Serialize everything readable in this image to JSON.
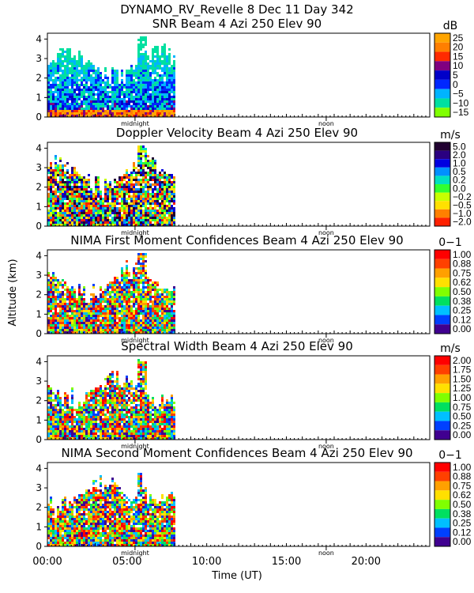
{
  "title": "DYNAMO_RV_Revelle    8 Dec 11 Day 342",
  "ylabel": "Altitude (km)",
  "xlabel": "Time (UT)",
  "x_ticks": [
    "00:00",
    "05:00",
    "10:00",
    "15:00",
    "20:00"
  ],
  "chart_data": [
    {
      "type": "heatmap",
      "title": "SNR Beam 4 Azi 250 Elev 90",
      "unit": "dB",
      "xlim": [
        0,
        24
      ],
      "ylim": [
        0,
        4.3
      ],
      "y_ticks": [
        "0",
        "1",
        "2",
        "3",
        "4"
      ],
      "markers": [
        {
          "label": "midnight",
          "x": 5.5
        },
        {
          "label": "noon",
          "x": 17.5
        }
      ],
      "colorbar": {
        "labels": [
          "25",
          "20",
          "15",
          "10",
          "5",
          "0",
          "−5",
          "−10",
          "−15"
        ],
        "colors": [
          "#ffa500",
          "#ff7f00",
          "#ff2a00",
          "#800080",
          "#0000c8",
          "#0028ff",
          "#00b4ff",
          "#00e0a0",
          "#80ff00"
        ]
      },
      "data_extent_hours": [
        0,
        8
      ],
      "data_height_km": [
        0,
        4.1
      ]
    },
    {
      "type": "heatmap",
      "title": "Doppler Velocity Beam 4 Azi 250 Elev 90",
      "unit": "m/s",
      "xlim": [
        0,
        24
      ],
      "ylim": [
        0,
        4.3
      ],
      "y_ticks": [
        "0",
        "1",
        "2",
        "3",
        "4"
      ],
      "markers": [
        {
          "label": "midnight",
          "x": 5.5
        },
        {
          "label": "noon",
          "x": 17.5
        }
      ],
      "colorbar": {
        "labels": [
          "5.0",
          "2.0",
          "1.0",
          "0.5",
          "0.2",
          "0.0",
          "−0.2",
          "−0.5",
          "−1.0",
          "−2.0"
        ],
        "colors": [
          "#200030",
          "#2a0080",
          "#0000e0",
          "#0090ff",
          "#00e0c0",
          "#30ff30",
          "#c8ff00",
          "#ffe000",
          "#ff8000",
          "#ff2000"
        ]
      },
      "data_extent_hours": [
        0,
        8
      ],
      "data_height_km": [
        0,
        4.1
      ]
    },
    {
      "type": "heatmap",
      "title": "NIMA First Moment Confidences Beam 4 Azi 250 Elev 90",
      "unit": "0−1",
      "xlim": [
        0,
        24
      ],
      "ylim": [
        0,
        4.3
      ],
      "y_ticks": [
        "0",
        "1",
        "2",
        "3",
        "4"
      ],
      "markers": [
        {
          "label": "midnight",
          "x": 5.5
        },
        {
          "label": "noon",
          "x": 17.5
        }
      ],
      "colorbar": {
        "labels": [
          "1.00",
          "0.88",
          "0.75",
          "0.62",
          "0.50",
          "0.38",
          "0.25",
          "0.12",
          "0.00"
        ],
        "colors": [
          "#ff0000",
          "#ff4000",
          "#ffa000",
          "#ffe000",
          "#80ff00",
          "#00e060",
          "#00c0ff",
          "#0040ff",
          "#400090"
        ]
      },
      "data_extent_hours": [
        0,
        8
      ],
      "data_height_km": [
        0,
        4.1
      ]
    },
    {
      "type": "heatmap",
      "title": "Spectral Width Beam 4 Azi 250 Elev 90",
      "unit": "m/s",
      "xlim": [
        0,
        24
      ],
      "ylim": [
        0,
        4.3
      ],
      "y_ticks": [
        "0",
        "1",
        "2",
        "3",
        "4"
      ],
      "markers": [
        {
          "label": "midnight",
          "x": 5.5
        },
        {
          "label": "noon",
          "x": 17.5
        }
      ],
      "colorbar": {
        "labels": [
          "2.00",
          "1.75",
          "1.50",
          "1.25",
          "1.00",
          "0.75",
          "0.50",
          "0.25",
          "0.00"
        ],
        "colors": [
          "#ff0000",
          "#ff4000",
          "#ffa000",
          "#ffe000",
          "#80ff00",
          "#00e060",
          "#00c0ff",
          "#0040ff",
          "#400090"
        ]
      },
      "data_extent_hours": [
        0,
        8
      ],
      "data_height_km": [
        0,
        4.1
      ]
    },
    {
      "type": "heatmap",
      "title": "NIMA Second Moment Confidences Beam 4 Azi 250 Elev 90",
      "unit": "0−1",
      "xlim": [
        0,
        24
      ],
      "ylim": [
        0,
        4.3
      ],
      "y_ticks": [
        "0",
        "1",
        "2",
        "3",
        "4"
      ],
      "markers": [
        {
          "label": "midnight",
          "x": 5.5
        },
        {
          "label": "noon",
          "x": 17.5
        }
      ],
      "colorbar": {
        "labels": [
          "1.00",
          "0.88",
          "0.75",
          "0.62",
          "0.50",
          "0.38",
          "0.25",
          "0.12",
          "0.00"
        ],
        "colors": [
          "#ff0000",
          "#ff4000",
          "#ffa000",
          "#ffe000",
          "#80ff00",
          "#00e060",
          "#00c0ff",
          "#0040ff",
          "#400090"
        ]
      },
      "data_extent_hours": [
        0,
        8
      ],
      "data_height_km": [
        0,
        4.1
      ]
    }
  ]
}
